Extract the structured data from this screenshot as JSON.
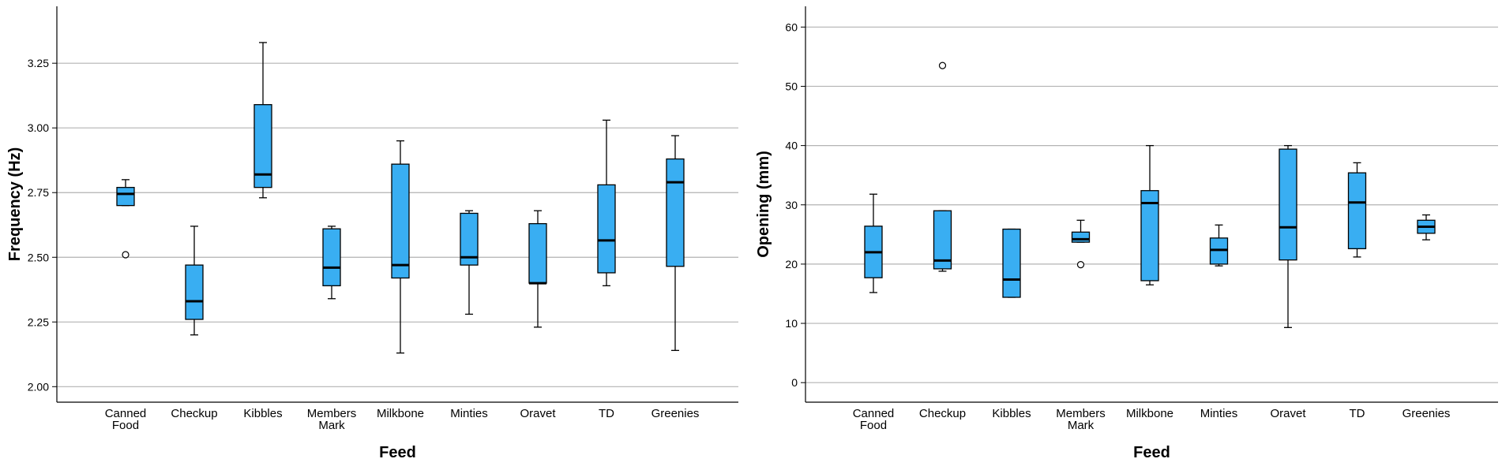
{
  "chart_data": [
    {
      "id": "frequency",
      "type": "boxplot",
      "xlabel": "Feed",
      "ylabel": "Frequency (Hz)",
      "ylim": [
        1.94,
        3.47
      ],
      "yticks": [
        "2.00",
        "2.25",
        "2.50",
        "2.75",
        "3.00",
        "3.25"
      ],
      "categories": [
        {
          "label": [
            "Canned",
            "Food"
          ],
          "min": 2.7,
          "q1": 2.7,
          "median": 2.745,
          "q3": 2.77,
          "max": 2.8,
          "outliers": [
            2.51
          ]
        },
        {
          "label": [
            "Checkup"
          ],
          "min": 2.2,
          "q1": 2.26,
          "median": 2.33,
          "q3": 2.47,
          "max": 2.62,
          "outliers": []
        },
        {
          "label": [
            "Kibbles"
          ],
          "min": 2.73,
          "q1": 2.77,
          "median": 2.82,
          "q3": 3.09,
          "max": 3.33,
          "outliers": []
        },
        {
          "label": [
            "Members",
            "Mark"
          ],
          "min": 2.34,
          "q1": 2.39,
          "median": 2.46,
          "q3": 2.61,
          "max": 2.62,
          "outliers": []
        },
        {
          "label": [
            "Milkbone"
          ],
          "min": 2.13,
          "q1": 2.42,
          "median": 2.47,
          "q3": 2.86,
          "max": 2.95,
          "outliers": []
        },
        {
          "label": [
            "Minties"
          ],
          "min": 2.28,
          "q1": 2.47,
          "median": 2.5,
          "q3": 2.67,
          "max": 2.68,
          "outliers": []
        },
        {
          "label": [
            "Oravet"
          ],
          "min": 2.23,
          "q1": 2.4,
          "median": 2.4,
          "q3": 2.63,
          "max": 2.68,
          "outliers": []
        },
        {
          "label": [
            "TD"
          ],
          "min": 2.39,
          "q1": 2.44,
          "median": 2.565,
          "q3": 2.78,
          "max": 3.03,
          "outliers": []
        },
        {
          "label": [
            "Greenies"
          ],
          "min": 2.14,
          "q1": 2.465,
          "median": 2.79,
          "q3": 2.88,
          "max": 2.97,
          "outliers": []
        }
      ]
    },
    {
      "id": "opening",
      "type": "boxplot",
      "xlabel": "Feed",
      "ylabel": "Opening (mm)",
      "ylim": [
        -3.3,
        63.5
      ],
      "yticks": [
        "0",
        "10",
        "20",
        "30",
        "40",
        "50",
        "60"
      ],
      "categories": [
        {
          "label": [
            "Canned",
            "Food"
          ],
          "min": 15.2,
          "q1": 17.7,
          "median": 22.0,
          "q3": 26.4,
          "max": 31.8,
          "outliers": []
        },
        {
          "label": [
            "Checkup"
          ],
          "min": 18.8,
          "q1": 19.2,
          "median": 20.6,
          "q3": 29.0,
          "max": 29.0,
          "outliers": [
            53.5
          ]
        },
        {
          "label": [
            "Kibbles"
          ],
          "min": 14.4,
          "q1": 14.4,
          "median": 17.4,
          "q3": 25.9,
          "max": 25.9,
          "outliers": []
        },
        {
          "label": [
            "Members",
            "Mark"
          ],
          "min": 23.7,
          "q1": 23.7,
          "median": 24.2,
          "q3": 25.4,
          "max": 27.4,
          "outliers": [
            19.9
          ]
        },
        {
          "label": [
            "Milkbone"
          ],
          "min": 16.5,
          "q1": 17.2,
          "median": 30.3,
          "q3": 32.4,
          "max": 40.0,
          "outliers": []
        },
        {
          "label": [
            "Minties"
          ],
          "min": 19.7,
          "q1": 20.0,
          "median": 22.4,
          "q3": 24.4,
          "max": 26.6,
          "outliers": []
        },
        {
          "label": [
            "Oravet"
          ],
          "min": 9.3,
          "q1": 20.7,
          "median": 26.2,
          "q3": 39.4,
          "max": 40.0,
          "outliers": []
        },
        {
          "label": [
            "TD"
          ],
          "min": 21.2,
          "q1": 22.6,
          "median": 30.4,
          "q3": 35.4,
          "max": 37.1,
          "outliers": []
        },
        {
          "label": [
            "Greenies"
          ],
          "min": 24.1,
          "q1": 25.2,
          "median": 26.3,
          "q3": 27.4,
          "max": 28.3,
          "outliers": []
        }
      ]
    }
  ],
  "colors": {
    "box_fill": "#39aef2",
    "stroke": "#000000",
    "grid": "#b3b3b3",
    "background": "#ffffff"
  }
}
